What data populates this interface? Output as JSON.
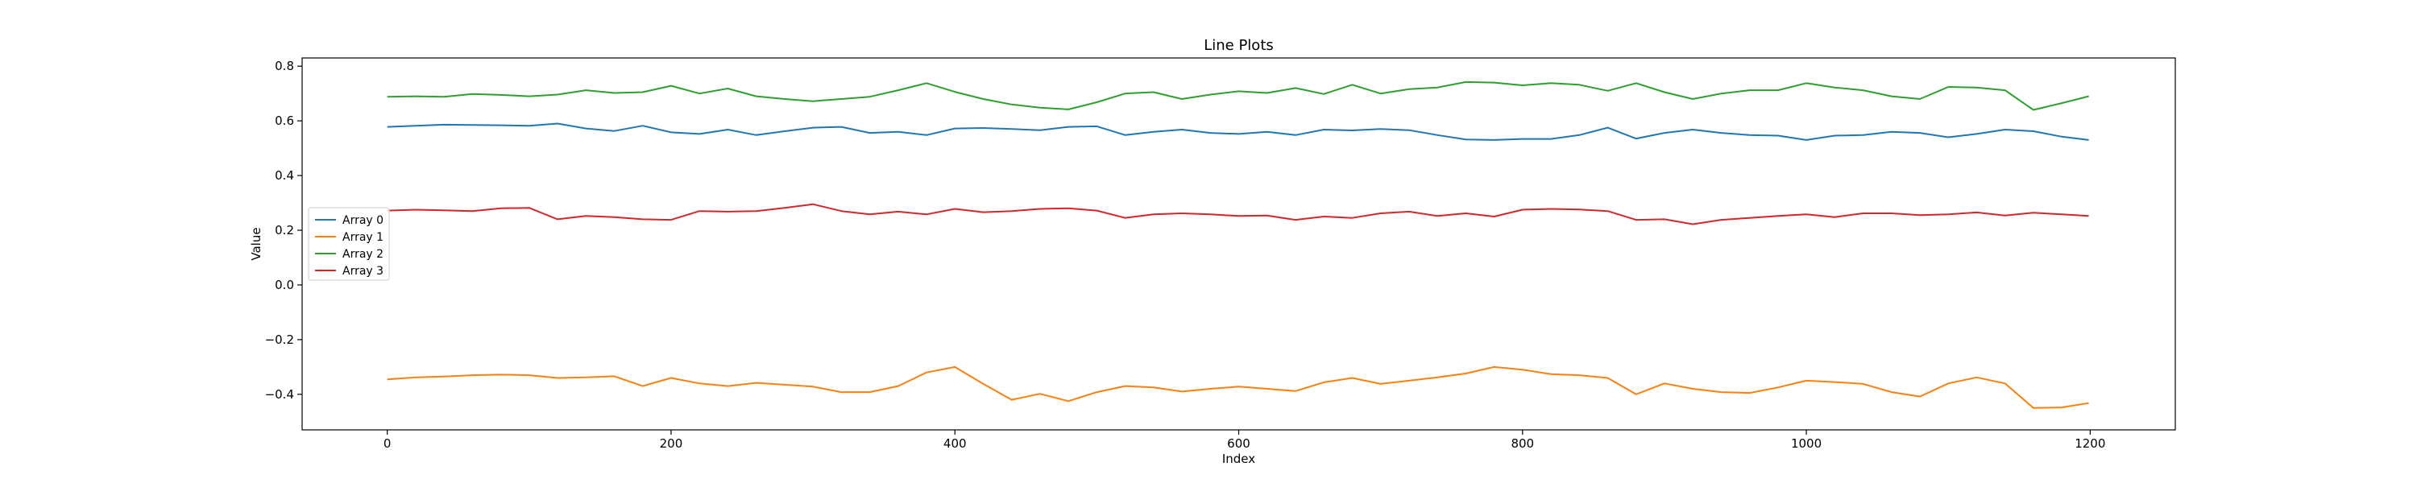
{
  "chart_data": {
    "type": "line",
    "title": "Line Plots",
    "xlabel": "Index",
    "ylabel": "Value",
    "xlim": [
      -60,
      1260
    ],
    "ylim": [
      -0.53,
      0.83
    ],
    "xticks": [
      0,
      200,
      400,
      600,
      800,
      1000,
      1200
    ],
    "yticks": [
      -0.4,
      -0.2,
      0.0,
      0.2,
      0.4,
      0.6,
      0.8
    ],
    "xtick_labels": [
      "0",
      "200",
      "400",
      "600",
      "800",
      "1000",
      "1200"
    ],
    "ytick_labels": [
      "−0.4",
      "−0.2",
      "0.0",
      "0.2",
      "0.4",
      "0.6",
      "0.8"
    ],
    "grid": false,
    "legend_position": "center-left",
    "x": [
      0,
      20,
      40,
      60,
      80,
      100,
      120,
      140,
      160,
      180,
      200,
      220,
      240,
      260,
      280,
      300,
      320,
      340,
      360,
      380,
      400,
      420,
      440,
      460,
      480,
      500,
      520,
      540,
      560,
      580,
      600,
      620,
      640,
      660,
      680,
      700,
      720,
      740,
      760,
      780,
      800,
      820,
      840,
      860,
      880,
      900,
      920,
      940,
      960,
      980,
      1000,
      1020,
      1040,
      1060,
      1080,
      1100,
      1120,
      1140,
      1160,
      1180,
      1199
    ],
    "series": [
      {
        "name": "Array 0",
        "color": "#1f77b4",
        "values": [
          0.578,
          0.582,
          0.586,
          0.585,
          0.584,
          0.582,
          0.59,
          0.572,
          0.563,
          0.582,
          0.558,
          0.552,
          0.568,
          0.548,
          0.562,
          0.575,
          0.578,
          0.556,
          0.56,
          0.548,
          0.572,
          0.574,
          0.57,
          0.566,
          0.578,
          0.58,
          0.548,
          0.56,
          0.568,
          0.556,
          0.552,
          0.56,
          0.548,
          0.568,
          0.565,
          0.57,
          0.566,
          0.548,
          0.532,
          0.53,
          0.534,
          0.534,
          0.548,
          0.575,
          0.535,
          0.556,
          0.568,
          0.556,
          0.548,
          0.546,
          0.53,
          0.546,
          0.548,
          0.56,
          0.556,
          0.54,
          0.552,
          0.568,
          0.562,
          0.542,
          0.53
        ]
      },
      {
        "name": "Array 1",
        "color": "#ff7f0e",
        "values": [
          -0.345,
          -0.338,
          -0.335,
          -0.33,
          -0.328,
          -0.33,
          -0.34,
          -0.338,
          -0.334,
          -0.37,
          -0.34,
          -0.36,
          -0.37,
          -0.358,
          -0.365,
          -0.372,
          -0.392,
          -0.392,
          -0.37,
          -0.32,
          -0.3,
          -0.362,
          -0.42,
          -0.398,
          -0.425,
          -0.392,
          -0.37,
          -0.375,
          -0.39,
          -0.38,
          -0.372,
          -0.38,
          -0.388,
          -0.356,
          -0.34,
          -0.362,
          -0.35,
          -0.338,
          -0.324,
          -0.3,
          -0.31,
          -0.326,
          -0.33,
          -0.34,
          -0.4,
          -0.36,
          -0.38,
          -0.392,
          -0.395,
          -0.375,
          -0.35,
          -0.355,
          -0.362,
          -0.392,
          -0.408,
          -0.36,
          -0.338,
          -0.36,
          -0.45,
          -0.448,
          -0.432
        ]
      },
      {
        "name": "Array 2",
        "color": "#2ca02c",
        "values": [
          0.688,
          0.69,
          0.688,
          0.698,
          0.695,
          0.69,
          0.696,
          0.712,
          0.702,
          0.705,
          0.728,
          0.7,
          0.718,
          0.69,
          0.68,
          0.672,
          0.68,
          0.688,
          0.712,
          0.738,
          0.706,
          0.68,
          0.66,
          0.648,
          0.642,
          0.668,
          0.7,
          0.705,
          0.68,
          0.696,
          0.708,
          0.702,
          0.72,
          0.698,
          0.732,
          0.7,
          0.716,
          0.722,
          0.742,
          0.74,
          0.73,
          0.738,
          0.732,
          0.71,
          0.738,
          0.705,
          0.68,
          0.7,
          0.712,
          0.712,
          0.738,
          0.722,
          0.712,
          0.69,
          0.68,
          0.724,
          0.722,
          0.712,
          0.64,
          0.665,
          0.69
        ]
      },
      {
        "name": "Array 3",
        "color": "#d62728",
        "values": [
          0.272,
          0.275,
          0.273,
          0.27,
          0.28,
          0.282,
          0.24,
          0.252,
          0.248,
          0.24,
          0.238,
          0.27,
          0.268,
          0.27,
          0.282,
          0.295,
          0.27,
          0.258,
          0.268,
          0.258,
          0.278,
          0.266,
          0.27,
          0.278,
          0.28,
          0.272,
          0.245,
          0.258,
          0.262,
          0.258,
          0.252,
          0.254,
          0.238,
          0.25,
          0.245,
          0.262,
          0.268,
          0.252,
          0.262,
          0.25,
          0.275,
          0.278,
          0.276,
          0.27,
          0.238,
          0.24,
          0.222,
          0.238,
          0.245,
          0.252,
          0.258,
          0.248,
          0.262,
          0.262,
          0.255,
          0.258,
          0.265,
          0.254,
          0.264,
          0.258,
          0.252
        ]
      }
    ]
  }
}
